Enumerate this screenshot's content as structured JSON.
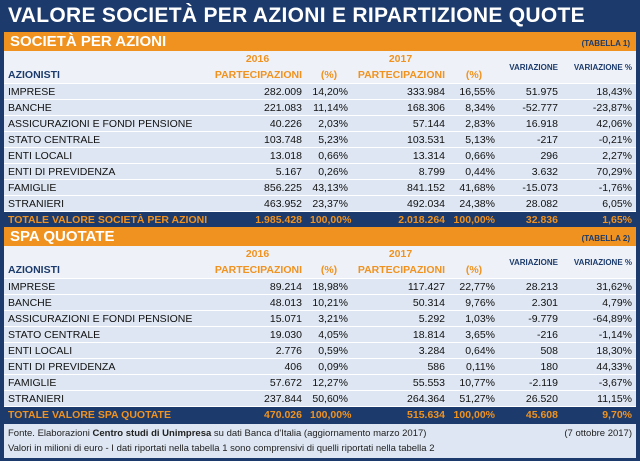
{
  "header": {
    "title": "VALORE SOCIETÀ PER AZIONI E RIPARTIZIONE QUOTE"
  },
  "tables": [
    {
      "title": "SOCIETÀ PER AZIONI",
      "tag": "(TABELLA 1)",
      "columns": {
        "azionisti": "AZIONISTI",
        "year1": "2016",
        "year2": "2017",
        "partecipazioni1": "PARTECIPAZIONI",
        "pct1": "(%)",
        "partecipazioni2": "PARTECIPAZIONI",
        "pct2": "(%)",
        "variazione": "VARIAZIONE",
        "variazione_pct": "VARIAZIONE %"
      },
      "rows": [
        [
          "IMPRESE",
          "282.009",
          "14,20%",
          "333.984",
          "16,55%",
          "51.975",
          "18,43%"
        ],
        [
          "BANCHE",
          "221.083",
          "11,14%",
          "168.306",
          "8,34%",
          "-52.777",
          "-23,87%"
        ],
        [
          "ASSICURAZIONI E FONDI PENSIONE",
          "40.226",
          "2,03%",
          "57.144",
          "2,83%",
          "16.918",
          "42,06%"
        ],
        [
          "STATO CENTRALE",
          "103.748",
          "5,23%",
          "103.531",
          "5,13%",
          "-217",
          "-0,21%"
        ],
        [
          "ENTI LOCALI",
          "13.018",
          "0,66%",
          "13.314",
          "0,66%",
          "296",
          "2,27%"
        ],
        [
          "ENTI DI PREVIDENZA",
          "5.167",
          "0,26%",
          "8.799",
          "0,44%",
          "3.632",
          "70,29%"
        ],
        [
          "FAMIGLIE",
          "856.225",
          "43,13%",
          "841.152",
          "41,68%",
          "-15.073",
          "-1,76%"
        ],
        [
          "STRANIERI",
          "463.952",
          "23,37%",
          "492.034",
          "24,38%",
          "28.082",
          "6,05%"
        ]
      ],
      "total": [
        "TOTALE VALORE SOCIETÀ PER AZIONI",
        "1.985.428",
        "100,00%",
        "2.018.264",
        "100,00%",
        "32.836",
        "1,65%"
      ]
    },
    {
      "title": "SPA QUOTATE",
      "tag": "(TABELLA 2)",
      "columns": {
        "azionisti": "AZIONISTI",
        "year1": "2016",
        "year2": "2017",
        "partecipazioni1": "PARTECIPAZIONI",
        "pct1": "(%)",
        "partecipazioni2": "PARTECIPAZIONI",
        "pct2": "(%)",
        "variazione": "VARIAZIONE",
        "variazione_pct": "VARIAZIONE %"
      },
      "rows": [
        [
          "IMPRESE",
          "89.214",
          "18,98%",
          "117.427",
          "22,77%",
          "28.213",
          "31,62%"
        ],
        [
          "BANCHE",
          "48.013",
          "10,21%",
          "50.314",
          "9,76%",
          "2.301",
          "4,79%"
        ],
        [
          "ASSICURAZIONI E FONDI PENSIONE",
          "15.071",
          "3,21%",
          "5.292",
          "1,03%",
          "-9.779",
          "-64,89%"
        ],
        [
          "STATO CENTRALE",
          "19.030",
          "4,05%",
          "18.814",
          "3,65%",
          "-216",
          "-1,14%"
        ],
        [
          "ENTI LOCALI",
          "2.776",
          "0,59%",
          "3.284",
          "0,64%",
          "508",
          "18,30%"
        ],
        [
          "ENTI DI PREVIDENZA",
          "406",
          "0,09%",
          "586",
          "0,11%",
          "180",
          "44,33%"
        ],
        [
          "FAMIGLIE",
          "57.672",
          "12,27%",
          "55.553",
          "10,77%",
          "-2.119",
          "-3,67%"
        ],
        [
          "STRANIERI",
          "237.844",
          "50,60%",
          "264.364",
          "51,27%",
          "26.520",
          "11,15%"
        ]
      ],
      "total": [
        "TOTALE VALORE SPA QUOTATE",
        "470.026",
        "100,00%",
        "515.634",
        "100,00%",
        "45.608",
        "9,70%"
      ]
    }
  ],
  "footer": {
    "source_prefix": "Fonte. Elaborazioni ",
    "source_org": "Centro studi di Unimpresa",
    "source_suffix": " su dati Banca d'Italia (aggiornamento marzo 2017)",
    "date": "(7 ottobre 2017)",
    "note": "Valori in milioni di euro - I dati riportati nella tabella 1 sono comprensivi di quelli riportati nella tabella 2"
  }
}
